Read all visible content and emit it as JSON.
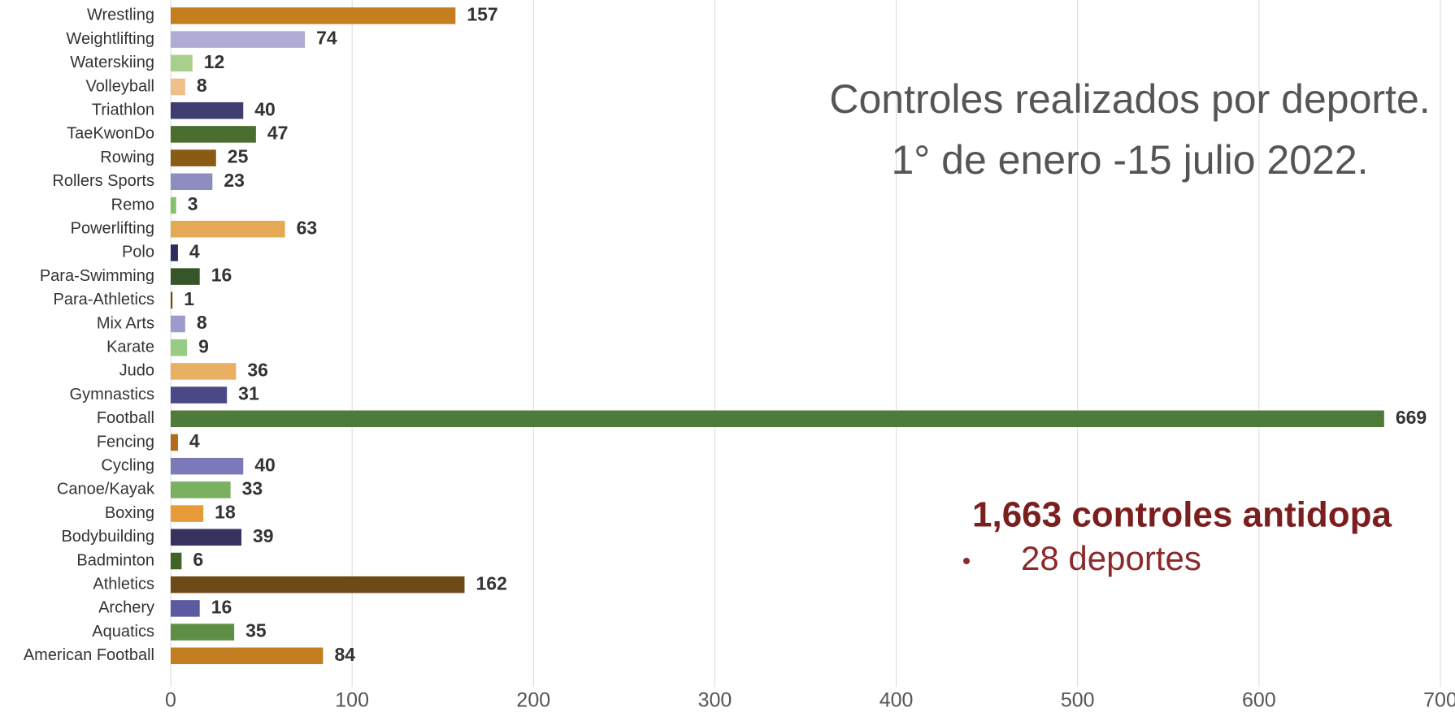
{
  "chart_data": {
    "type": "hbar",
    "title": "Controles realizados por deporte.",
    "subtitle": "1° de enero -15 julio 2022.",
    "annotations": [
      "1,663 controles antidopa",
      "28 deportes"
    ],
    "categories": [
      "Wrestling",
      "Weightlifting",
      "Waterskiing",
      "Volleyball",
      "Triathlon",
      "TaeKwonDo",
      "Rowing",
      "Rollers Sports",
      "Remo",
      "Powerlifting",
      "Polo",
      "Para-Swimming",
      "Para-Athletics",
      "Mix Arts",
      "Karate",
      "Judo",
      "Gymnastics",
      "Football",
      "Fencing",
      "Cycling",
      "Canoe/Kayak",
      "Boxing",
      "Bodybuilding",
      "Badminton",
      "Athletics",
      "Archery",
      "Aquatics",
      "American Football"
    ],
    "values": [
      157,
      74,
      12,
      8,
      40,
      47,
      25,
      23,
      3,
      63,
      4,
      16,
      1,
      8,
      9,
      36,
      31,
      669,
      4,
      40,
      33,
      18,
      39,
      6,
      162,
      16,
      35,
      84
    ],
    "colors": [
      "#c57e1f",
      "#aeacd3",
      "#a8d08d",
      "#f0c08a",
      "#3f3d6f",
      "#4a6e2e",
      "#8b5a14",
      "#8e8cc0",
      "#86c06a",
      "#e5a854",
      "#2e2c5a",
      "#36562a",
      "#7a4e12",
      "#9d9bce",
      "#98cb84",
      "#e8b060",
      "#4a4886",
      "#4e7a3a",
      "#b06a18",
      "#7c7ab8",
      "#7ab060",
      "#e69b38",
      "#36345e",
      "#3e6428",
      "#6e4a16",
      "#5b59a0",
      "#5e8e44",
      "#c47e22"
    ],
    "xlim": [
      0,
      700
    ],
    "xticks": [
      0,
      100,
      200,
      300,
      400,
      500,
      600,
      700
    ],
    "grid": true
  }
}
